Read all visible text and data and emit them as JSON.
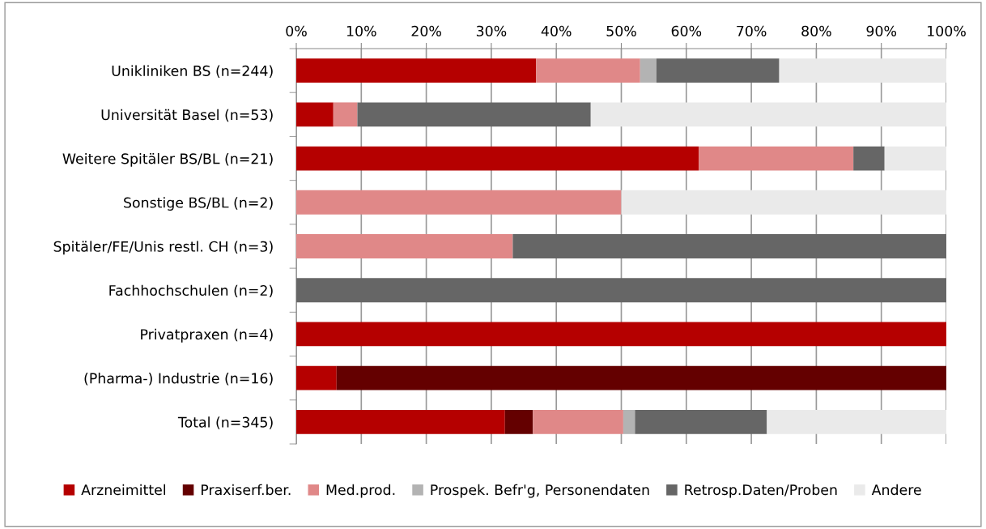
{
  "chart_data": {
    "type": "bar",
    "orientation": "horizontal",
    "stacked": true,
    "categories": [
      "Unikliniken BS (n=244)",
      "Universität Basel (n=53)",
      "Weitere Spitäler BS/BL (n=21)",
      "Sonstige BS/BL (n=2)",
      "Spitäler/FE/Unis restl. CH (n=3)",
      "Fachhochschulen (n=2)",
      "Privatpraxen (n=4)",
      "(Pharma-) Industrie (n=16)",
      "Total (n=345)"
    ],
    "series": [
      {
        "name": "Arzneimittel",
        "color": "#b50000",
        "values": [
          36.9,
          5.7,
          61.9,
          0,
          0,
          0,
          100,
          6.2,
          32.1
        ]
      },
      {
        "name": "Praxiserf.ber.",
        "color": "#640000",
        "values": [
          0,
          0,
          0,
          0,
          0,
          0,
          0,
          93.8,
          4.3
        ]
      },
      {
        "name": "Med.prod.",
        "color": "#e08888",
        "values": [
          16.0,
          3.7,
          23.8,
          50,
          33.3,
          0,
          0,
          0,
          13.9
        ]
      },
      {
        "name": "Prospek. Befr'g, Personendaten",
        "color": "#b3b3b3",
        "values": [
          2.5,
          0,
          0,
          0,
          0,
          0,
          0,
          0,
          1.8
        ]
      },
      {
        "name": "Retrosp.Daten/Proben",
        "color": "#666666",
        "values": [
          18.9,
          35.9,
          4.8,
          0,
          66.7,
          100,
          0,
          0,
          20.3
        ]
      },
      {
        "name": "Andere",
        "color": "#eaeaea",
        "values": [
          25.7,
          54.7,
          9.5,
          50,
          0,
          0,
          0,
          0,
          27.6
        ]
      }
    ],
    "xlim": [
      0,
      100
    ],
    "xticks": [
      {
        "value": 0,
        "label": "0%"
      },
      {
        "value": 10,
        "label": "10%"
      },
      {
        "value": 20,
        "label": "20%"
      },
      {
        "value": 30,
        "label": "30%"
      },
      {
        "value": 40,
        "label": "40%"
      },
      {
        "value": 50,
        "label": "50%"
      },
      {
        "value": 60,
        "label": "60%"
      },
      {
        "value": 70,
        "label": "70%"
      },
      {
        "value": 80,
        "label": "80%"
      },
      {
        "value": 90,
        "label": "90%"
      },
      {
        "value": 100,
        "label": "100%"
      }
    ],
    "grid": "x",
    "legend": "bottom"
  }
}
